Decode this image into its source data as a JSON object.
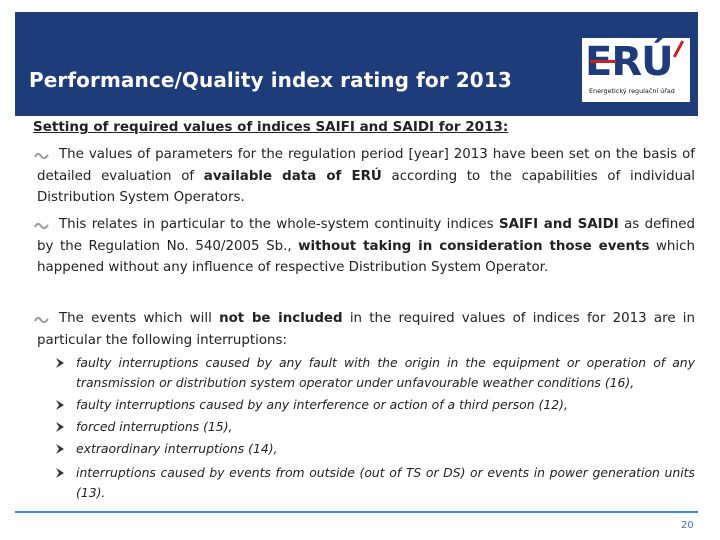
{
  "header": {
    "title": "Performance/Quality index rating for 2013",
    "logo_text": "ERÚ",
    "logo_caption": "Energetický regulační úřad"
  },
  "subtitle": "Setting of required values of indices SAIFI and SAIDI for 2013:",
  "paragraphs": [
    {
      "parts": [
        "The values of parameters for the regulation period [year] 2013 have been set on the basis of detailed evaluation of ",
        "available data of ERÚ",
        " according to the capabilities of individual Distribution System Operators."
      ]
    },
    {
      "parts": [
        "This relates in particular to the whole-system continuity indices ",
        "SAIFI and SAIDI",
        " as defined by the Regulation No. 540/2005 Sb., ",
        "without taking in consideration those events",
        " which happened without any influence of respective Distribution System Operator."
      ]
    },
    {
      "parts": [
        "The events which will ",
        "not be included",
        " in the required values of indices for 2013 are in particular the following interruptions:"
      ]
    }
  ],
  "interruptions": [
    "faulty interruptions caused by any fault with the origin in the equipment or operation of any transmission or distribution system operator under unfavourable weather conditions (16),",
    "faulty interruptions caused by any interference or action of a third person (12),",
    "forced interruptions (15),",
    "extraordinary interruptions (14),",
    "interruptions caused by events from outside (out of TS or DS) or events in power generation units (13)."
  ],
  "footer": {
    "page_number": "20"
  },
  "colors": {
    "header_bg": "#1f3c7a",
    "accent_red": "#cc1f1f",
    "footer_line": "#3d8bd8"
  },
  "icons": {
    "paragraph_bullet": "curl-bullet-icon",
    "list_bullet": "arrow-bullet-icon"
  }
}
